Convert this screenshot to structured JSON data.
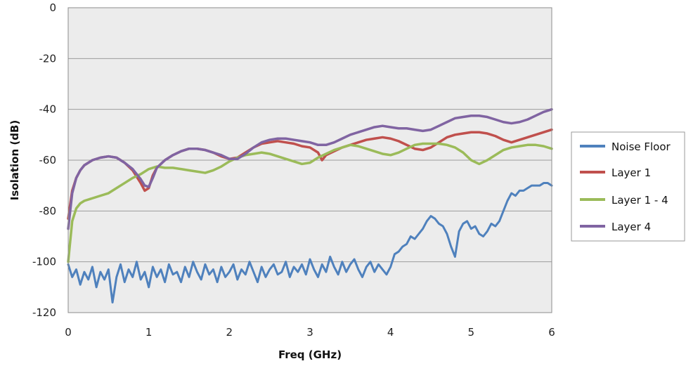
{
  "chart_data": {
    "type": "line",
    "xlabel": "Freq (GHz)",
    "ylabel": "Isolation (dB)",
    "xlim": [
      0,
      6
    ],
    "ylim": [
      -120,
      0
    ],
    "x_ticks": [
      "0",
      "1",
      "2",
      "3",
      "4",
      "5",
      "6"
    ],
    "y_ticks": [
      "0",
      "-20",
      "-40",
      "-60",
      "-80",
      "-100",
      "-120"
    ],
    "grid": "horizontal",
    "legend_position": "right",
    "series": [
      {
        "name": "Noise Floor",
        "color": "#4f81bd",
        "x": [
          0,
          0.05,
          0.1,
          0.15,
          0.2,
          0.25,
          0.3,
          0.35,
          0.4,
          0.45,
          0.5,
          0.55,
          0.6,
          0.65,
          0.7,
          0.75,
          0.8,
          0.85,
          0.9,
          0.95,
          1.0,
          1.05,
          1.1,
          1.15,
          1.2,
          1.25,
          1.3,
          1.35,
          1.4,
          1.45,
          1.5,
          1.55,
          1.6,
          1.65,
          1.7,
          1.75,
          1.8,
          1.85,
          1.9,
          1.95,
          2.0,
          2.05,
          2.1,
          2.15,
          2.2,
          2.25,
          2.3,
          2.35,
          2.4,
          2.45,
          2.5,
          2.55,
          2.6,
          2.65,
          2.7,
          2.75,
          2.8,
          2.85,
          2.9,
          2.95,
          3.0,
          3.05,
          3.1,
          3.15,
          3.2,
          3.25,
          3.3,
          3.35,
          3.4,
          3.45,
          3.5,
          3.55,
          3.6,
          3.65,
          3.7,
          3.75,
          3.8,
          3.85,
          3.9,
          3.95,
          4.0,
          4.05,
          4.1,
          4.15,
          4.2,
          4.25,
          4.3,
          4.35,
          4.4,
          4.45,
          4.5,
          4.55,
          4.6,
          4.65,
          4.7,
          4.75,
          4.8,
          4.85,
          4.9,
          4.95,
          5.0,
          5.05,
          5.1,
          5.15,
          5.2,
          5.25,
          5.3,
          5.35,
          5.4,
          5.45,
          5.5,
          5.55,
          5.6,
          5.65,
          5.7,
          5.75,
          5.8,
          5.85,
          5.9,
          5.95,
          6.0
        ],
        "y": [
          -101,
          -106,
          -103,
          -109,
          -104,
          -107,
          -102,
          -110,
          -104,
          -107,
          -103,
          -116,
          -106,
          -101,
          -108,
          -103,
          -106,
          -100,
          -107,
          -104,
          -110,
          -102,
          -106,
          -103,
          -108,
          -101,
          -105,
          -104,
          -108,
          -102,
          -106,
          -100,
          -104,
          -107,
          -101,
          -105,
          -103,
          -108,
          -102,
          -106,
          -104,
          -101,
          -107,
          -103,
          -105,
          -100,
          -104,
          -108,
          -102,
          -106,
          -103,
          -101,
          -105,
          -104,
          -100,
          -106,
          -102,
          -104,
          -101,
          -105,
          -99,
          -103,
          -106,
          -101,
          -104,
          -98,
          -102,
          -105,
          -100,
          -104,
          -101,
          -99,
          -103,
          -106,
          -102,
          -100,
          -104,
          -101,
          -103,
          -105,
          -102,
          -97,
          -96,
          -94,
          -93,
          -90,
          -91,
          -89,
          -87,
          -84,
          -82,
          -83,
          -85,
          -86,
          -89,
          -94,
          -98,
          -88,
          -85,
          -84,
          -87,
          -86,
          -89,
          -90,
          -88,
          -85,
          -86,
          -84,
          -80,
          -76,
          -73,
          -74,
          -72,
          -72,
          -71,
          -70,
          -70,
          -70,
          -69,
          -69,
          -70
        ]
      },
      {
        "name": "Layer 1",
        "color": "#c0504d",
        "x": [
          0,
          0.05,
          0.1,
          0.15,
          0.2,
          0.3,
          0.4,
          0.5,
          0.6,
          0.7,
          0.8,
          0.9,
          0.95,
          1.0,
          1.05,
          1.1,
          1.2,
          1.3,
          1.4,
          1.5,
          1.6,
          1.7,
          1.8,
          1.9,
          2.0,
          2.1,
          2.2,
          2.3,
          2.4,
          2.5,
          2.6,
          2.7,
          2.8,
          2.9,
          3.0,
          3.1,
          3.15,
          3.2,
          3.3,
          3.4,
          3.5,
          3.6,
          3.7,
          3.8,
          3.9,
          4.0,
          4.1,
          4.2,
          4.3,
          4.4,
          4.5,
          4.6,
          4.7,
          4.8,
          4.9,
          5.0,
          5.1,
          5.2,
          5.3,
          5.4,
          5.5,
          5.6,
          5.7,
          5.8,
          5.9,
          6.0
        ],
        "y": [
          -83,
          -72,
          -67,
          -64,
          -62,
          -60,
          -59,
          -58.5,
          -59,
          -61,
          -64,
          -69,
          -72,
          -71,
          -66,
          -63,
          -60,
          -58,
          -56.5,
          -55.5,
          -55.5,
          -56,
          -57,
          -58.5,
          -59.5,
          -59,
          -57,
          -55,
          -53.5,
          -53,
          -52.5,
          -53,
          -53.5,
          -54.5,
          -55,
          -57,
          -60,
          -58,
          -56.5,
          -55,
          -54,
          -53,
          -52,
          -51.5,
          -51,
          -51.5,
          -52.5,
          -54,
          -55.5,
          -56,
          -55,
          -53,
          -51,
          -50,
          -49.5,
          -49,
          -49,
          -49.5,
          -50.5,
          -52,
          -53,
          -52,
          -51,
          -50,
          -49,
          -48
        ]
      },
      {
        "name": "Layer 1 - 4",
        "color": "#9bbb59",
        "x": [
          0,
          0.05,
          0.1,
          0.15,
          0.2,
          0.3,
          0.4,
          0.5,
          0.6,
          0.7,
          0.8,
          0.9,
          1.0,
          1.1,
          1.2,
          1.3,
          1.4,
          1.5,
          1.6,
          1.7,
          1.8,
          1.9,
          2.0,
          2.1,
          2.2,
          2.3,
          2.4,
          2.5,
          2.6,
          2.7,
          2.8,
          2.9,
          3.0,
          3.1,
          3.2,
          3.3,
          3.4,
          3.5,
          3.6,
          3.7,
          3.8,
          3.9,
          4.0,
          4.1,
          4.2,
          4.3,
          4.4,
          4.5,
          4.6,
          4.7,
          4.8,
          4.9,
          5.0,
          5.1,
          5.2,
          5.3,
          5.4,
          5.5,
          5.6,
          5.7,
          5.8,
          5.9,
          6.0
        ],
        "y": [
          -100,
          -84,
          -79,
          -77,
          -76,
          -75,
          -74,
          -73,
          -71,
          -69,
          -67,
          -65.5,
          -63.5,
          -62.5,
          -63,
          -63,
          -63.5,
          -64,
          -64.5,
          -65,
          -64,
          -62.5,
          -60.5,
          -59,
          -58,
          -57.5,
          -57,
          -57.5,
          -58.5,
          -59.5,
          -60.5,
          -61.5,
          -61,
          -59,
          -57.5,
          -56,
          -55,
          -54,
          -54.5,
          -55.5,
          -56.5,
          -57.5,
          -58,
          -57,
          -55.5,
          -54,
          -53.5,
          -53.5,
          -53.5,
          -54,
          -55,
          -57,
          -60,
          -61.5,
          -60,
          -58,
          -56,
          -55,
          -54.5,
          -54,
          -54,
          -54.5,
          -55.5
        ]
      },
      {
        "name": "Layer 4",
        "color": "#8064a2",
        "x": [
          0,
          0.05,
          0.1,
          0.15,
          0.2,
          0.3,
          0.4,
          0.5,
          0.6,
          0.7,
          0.8,
          0.9,
          0.95,
          1.0,
          1.05,
          1.1,
          1.2,
          1.3,
          1.4,
          1.5,
          1.6,
          1.7,
          1.8,
          1.9,
          2.0,
          2.1,
          2.2,
          2.3,
          2.4,
          2.5,
          2.6,
          2.7,
          2.8,
          2.9,
          3.0,
          3.1,
          3.2,
          3.3,
          3.4,
          3.5,
          3.6,
          3.7,
          3.8,
          3.9,
          4.0,
          4.1,
          4.2,
          4.3,
          4.4,
          4.5,
          4.6,
          4.7,
          4.8,
          4.9,
          5.0,
          5.1,
          5.2,
          5.3,
          5.4,
          5.5,
          5.6,
          5.7,
          5.8,
          5.9,
          6.0
        ],
        "y": [
          -87,
          -73,
          -67,
          -64,
          -62,
          -60,
          -59,
          -58.5,
          -59,
          -61,
          -63.5,
          -67.5,
          -70,
          -70.5,
          -67,
          -63,
          -60,
          -58,
          -56.5,
          -55.5,
          -55.5,
          -56,
          -57,
          -58,
          -59.5,
          -59.5,
          -57.5,
          -55,
          -53,
          -52,
          -51.5,
          -51.5,
          -52,
          -52.5,
          -53,
          -54,
          -54,
          -53,
          -51.5,
          -50,
          -49,
          -48,
          -47,
          -46.5,
          -47,
          -47.5,
          -47.5,
          -48,
          -48.5,
          -48,
          -46.5,
          -45,
          -43.5,
          -43,
          -42.5,
          -42.5,
          -43,
          -44,
          -45,
          -45.5,
          -45,
          -44,
          -42.5,
          -41,
          -40
        ]
      }
    ]
  }
}
